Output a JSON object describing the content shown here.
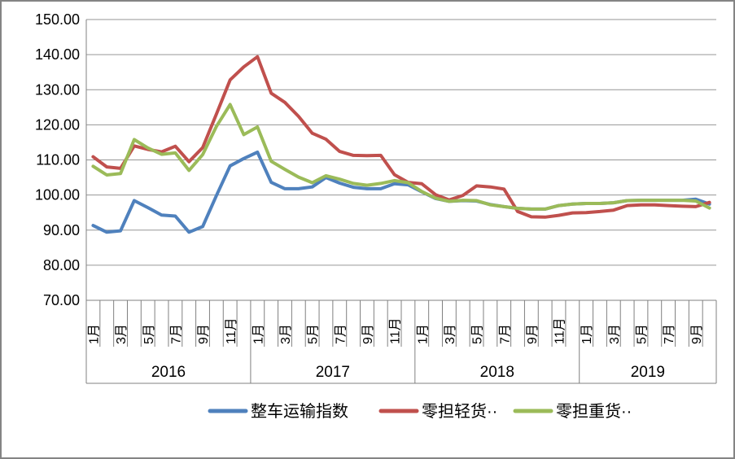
{
  "chart_data": {
    "type": "line",
    "title": "",
    "y_axis": {
      "min": 70,
      "max": 150,
      "step": 10,
      "tick_labels": [
        "150.00",
        "140.00",
        "130.00",
        "120.00",
        "110.00",
        "100.00",
        "90.00",
        "80.00",
        "70.00"
      ],
      "grid": true
    },
    "x_axis": {
      "year_groups": [
        {
          "year": "2016",
          "months": 12,
          "tick_labels": [
            "1月",
            "3月",
            "5月",
            "7月",
            "9月",
            "11月"
          ]
        },
        {
          "year": "2017",
          "months": 12,
          "tick_labels": [
            "1月",
            "3月",
            "5月",
            "7月",
            "9月",
            "11月"
          ]
        },
        {
          "year": "2018",
          "months": 12,
          "tick_labels": [
            "1月",
            "3月",
            "5月",
            "7月",
            "9月",
            "11月"
          ]
        },
        {
          "year": "2019",
          "months": 10,
          "tick_labels": [
            "1月",
            "3月",
            "5月",
            "7月",
            "9月"
          ]
        }
      ]
    },
    "legend": {
      "position": "bottom"
    },
    "series": [
      {
        "name": "整车运输指数",
        "color": "#4F81BD",
        "values": [
          91.3,
          89.4,
          89.8,
          98.4,
          96.4,
          94.3,
          94.0,
          89.4,
          91.0,
          99.8,
          108.3,
          110.4,
          112.2,
          103.6,
          101.8,
          101.8,
          102.3,
          105.0,
          103.4,
          102.2,
          101.8,
          101.8,
          103.2,
          102.9,
          100.9,
          99.0,
          98.2,
          98.4,
          98.3,
          97.3,
          96.7,
          96.2,
          96.0,
          96.0,
          97.0,
          97.4,
          97.6,
          97.6,
          97.8,
          98.4,
          98.5,
          98.5,
          98.5,
          98.5,
          98.8,
          97.4
        ]
      },
      {
        "name": "零担轻货··",
        "color": "#C0504D",
        "values": [
          110.9,
          108.0,
          107.6,
          114.0,
          113.0,
          112.3,
          113.9,
          109.5,
          113.5,
          123.0,
          132.8,
          136.5,
          139.4,
          129.0,
          126.4,
          122.4,
          117.6,
          115.9,
          112.4,
          111.3,
          111.2,
          111.3,
          105.8,
          103.6,
          103.2,
          100.1,
          98.6,
          99.9,
          102.6,
          102.3,
          101.7,
          95.3,
          93.8,
          93.7,
          94.2,
          94.9,
          95.0,
          95.3,
          95.7,
          97.0,
          97.2,
          97.2,
          97.0,
          96.8,
          96.7,
          97.9
        ]
      },
      {
        "name": "零担重货··",
        "color": "#9BBB59",
        "values": [
          108.2,
          105.7,
          106.1,
          115.8,
          113.4,
          111.6,
          112.0,
          107.0,
          111.5,
          119.5,
          125.8,
          117.2,
          119.4,
          109.6,
          107.3,
          105.1,
          103.5,
          105.5,
          104.5,
          103.3,
          102.8,
          103.3,
          104.1,
          103.5,
          101.0,
          99.1,
          98.2,
          98.5,
          98.4,
          97.2,
          96.7,
          96.2,
          96.0,
          96.0,
          97.0,
          97.4,
          97.6,
          97.6,
          97.8,
          98.4,
          98.5,
          98.5,
          98.5,
          98.5,
          98.3,
          96.3
        ]
      }
    ]
  },
  "colors": {
    "grid": "#969696",
    "axis": "#808080",
    "tick": "#808080",
    "text": "#000000",
    "frame": "#848484",
    "background": "#FFFFFF"
  }
}
